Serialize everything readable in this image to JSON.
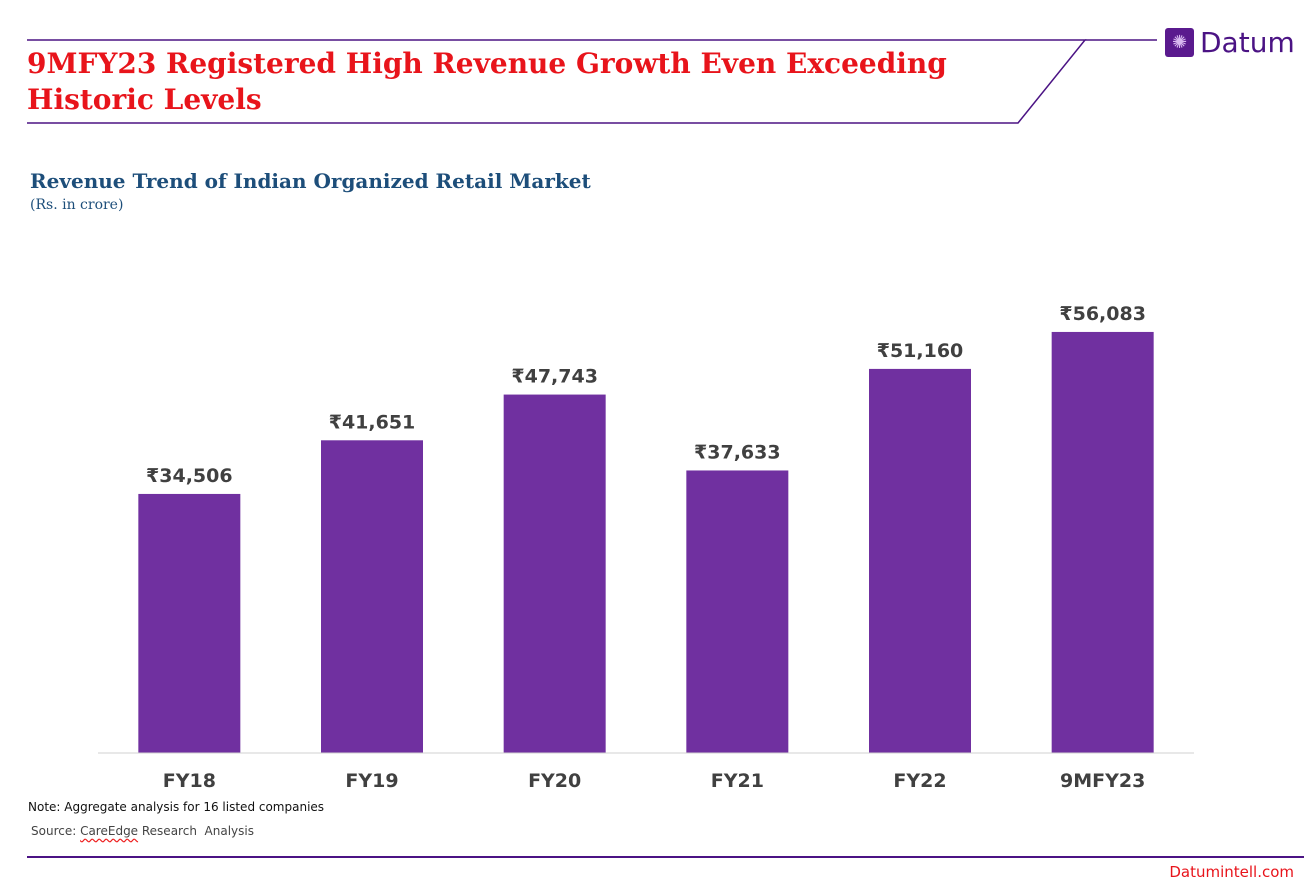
{
  "header": {
    "title": "9MFY23 Registered High Revenue Growth Even Exceeding Historic Levels",
    "logo_text": "Datum",
    "brand_color": "#4b1384",
    "title_color": "#e8141b"
  },
  "chart_data": {
    "type": "bar",
    "title": "Revenue Trend of Indian Organized Retail Market",
    "subtitle": "(Rs. in crore)",
    "categories": [
      "FY18",
      "FY19",
      "FY20",
      "FY21",
      "FY22",
      "9MFY23"
    ],
    "values": [
      34506,
      41651,
      47743,
      37633,
      51160,
      56083
    ],
    "data_labels": [
      "₹34,506",
      "₹41,651",
      "₹47,743",
      "₹37,633",
      "₹51,160",
      "₹56,083"
    ],
    "ylim": [
      0,
      65000
    ],
    "grid": false,
    "bar_color": "#7030a0"
  },
  "footer": {
    "note": "Note: Aggregate analysis for 16 listed companies",
    "source_prefix": "Source: ",
    "source_name": "CareEdge",
    "source_rest": " Research  Analysis",
    "site": "Datumintell.com"
  }
}
